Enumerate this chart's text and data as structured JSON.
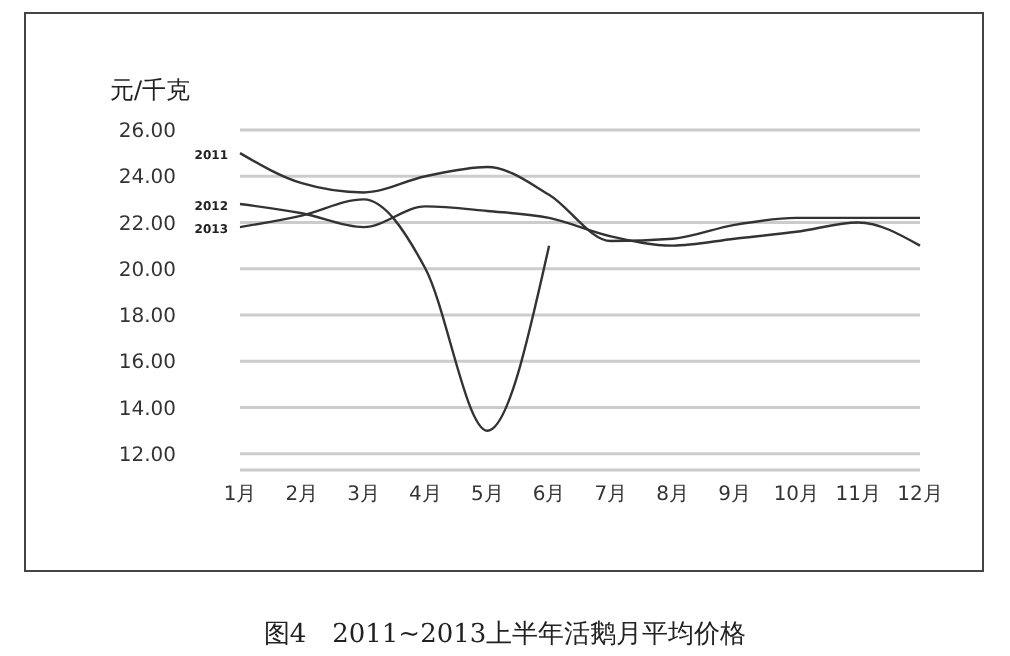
{
  "chart_data": {
    "type": "line",
    "title": "图4　2011~2013上半年活鹅月平均价格",
    "ylabel": "元/千克",
    "categories": [
      "1月",
      "2月",
      "3月",
      "4月",
      "5月",
      "6月",
      "7月",
      "8月",
      "9月",
      "10月",
      "11月",
      "12月"
    ],
    "series": [
      {
        "name": "2011",
        "color": "#333333",
        "values": [
          25.0,
          23.7,
          23.3,
          24.0,
          24.4,
          23.2,
          21.2,
          21.3,
          21.9,
          22.2,
          22.2,
          22.2
        ]
      },
      {
        "name": "2012",
        "color": "#333333",
        "values": [
          22.8,
          22.4,
          21.8,
          22.7,
          22.5,
          22.2,
          21.4,
          21.0,
          21.3,
          21.6,
          22.0,
          21.0
        ]
      },
      {
        "name": "2013",
        "color": "#333333",
        "values": [
          21.8,
          22.3,
          23.0,
          20.0,
          13.0,
          21.0,
          null,
          null,
          null,
          null,
          null,
          null
        ]
      }
    ],
    "ylim": [
      11.3,
      26
    ],
    "yticks": [
      {
        "value": 12,
        "label": "12.00"
      },
      {
        "value": 14,
        "label": "14.00"
      },
      {
        "value": 16,
        "label": "16.00"
      },
      {
        "value": 18,
        "label": "18.00"
      },
      {
        "value": 20,
        "label": "20.00"
      },
      {
        "value": 22,
        "label": "22.00"
      },
      {
        "value": 24,
        "label": "24.00"
      },
      {
        "value": 26,
        "label": "26.00"
      }
    ],
    "grid": "y",
    "marker": "none",
    "line_style": "solid"
  }
}
